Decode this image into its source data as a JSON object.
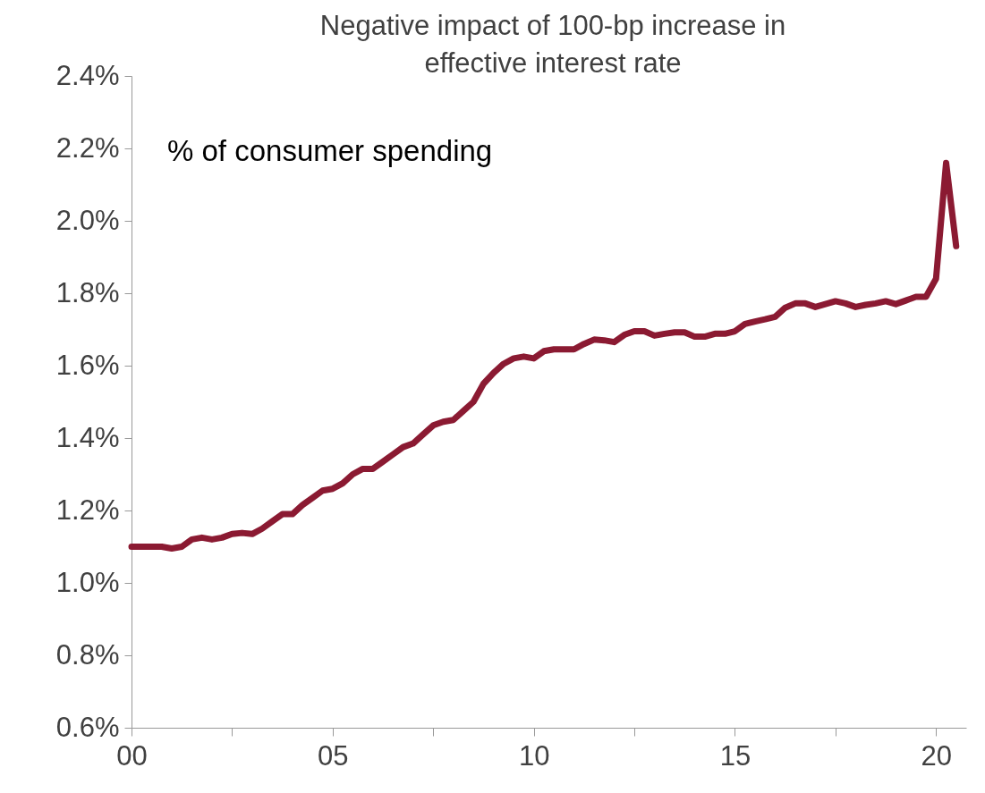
{
  "chart_data": {
    "type": "line",
    "title": "Negative impact of 100-bp increase in\neffective interest rate",
    "annotations": [
      "% of consumer spending"
    ],
    "x": [
      2000,
      2000.25,
      2000.5,
      2000.75,
      2001,
      2001.25,
      2001.5,
      2001.75,
      2002,
      2002.25,
      2002.5,
      2002.75,
      2003,
      2003.25,
      2003.5,
      2003.75,
      2004,
      2004.25,
      2004.5,
      2004.75,
      2005,
      2005.25,
      2005.5,
      2005.75,
      2006,
      2006.25,
      2006.5,
      2006.75,
      2007,
      2007.25,
      2007.5,
      2007.75,
      2008,
      2008.25,
      2008.5,
      2008.75,
      2009,
      2009.25,
      2009.5,
      2009.75,
      2010,
      2010.25,
      2010.5,
      2010.75,
      2011,
      2011.25,
      2011.5,
      2011.75,
      2012,
      2012.25,
      2012.5,
      2012.75,
      2013,
      2013.25,
      2013.5,
      2013.75,
      2014,
      2014.25,
      2014.5,
      2014.75,
      2015,
      2015.25,
      2015.5,
      2015.75,
      2016,
      2016.25,
      2016.5,
      2016.75,
      2017,
      2017.25,
      2017.5,
      2017.75,
      2018,
      2018.25,
      2018.5,
      2018.75,
      2019,
      2019.25,
      2019.5,
      2019.75,
      2020,
      2020.25,
      2020.5
    ],
    "series": [
      {
        "color": "#8b1a32",
        "values": [
          1.1,
          1.1,
          1.1,
          1.1,
          1.095,
          1.1,
          1.12,
          1.125,
          1.12,
          1.125,
          1.135,
          1.138,
          1.135,
          1.15,
          1.17,
          1.19,
          1.19,
          1.215,
          1.235,
          1.255,
          1.26,
          1.275,
          1.3,
          1.315,
          1.315,
          1.335,
          1.355,
          1.375,
          1.385,
          1.41,
          1.435,
          1.445,
          1.45,
          1.475,
          1.5,
          1.55,
          1.58,
          1.605,
          1.62,
          1.625,
          1.62,
          1.64,
          1.645,
          1.645,
          1.645,
          1.66,
          1.672,
          1.67,
          1.665,
          1.685,
          1.695,
          1.695,
          1.683,
          1.688,
          1.692,
          1.692,
          1.68,
          1.68,
          1.688,
          1.688,
          1.695,
          1.715,
          1.722,
          1.728,
          1.735,
          1.76,
          1.772,
          1.772,
          1.762,
          1.77,
          1.778,
          1.772,
          1.762,
          1.768,
          1.772,
          1.778,
          1.77,
          1.78,
          1.79,
          1.79,
          1.84,
          2.16,
          1.93
        ]
      }
    ],
    "xlim": [
      2000,
      2020.75
    ],
    "xticks": [
      {
        "value": 2000,
        "label": "00"
      },
      {
        "value": 2002.5,
        "label": null
      },
      {
        "value": 2005,
        "label": "05"
      },
      {
        "value": 2007.5,
        "label": null
      },
      {
        "value": 2010,
        "label": "10"
      },
      {
        "value": 2012.5,
        "label": null
      },
      {
        "value": 2015,
        "label": "15"
      },
      {
        "value": 2017.5,
        "label": null
      },
      {
        "value": 2020,
        "label": "20"
      }
    ],
    "ylim": [
      0.6,
      2.4
    ],
    "yticks": [
      {
        "value": 0.6,
        "label": "0.6%"
      },
      {
        "value": 0.8,
        "label": "0.8%"
      },
      {
        "value": 1.0,
        "label": "1.0%"
      },
      {
        "value": 1.2,
        "label": "1.2%"
      },
      {
        "value": 1.4,
        "label": "1.4%"
      },
      {
        "value": 1.6,
        "label": "1.6%"
      },
      {
        "value": 1.8,
        "label": "1.8%"
      },
      {
        "value": 2.0,
        "label": "2.0%"
      },
      {
        "value": 2.2,
        "label": "2.2%"
      },
      {
        "value": 2.4,
        "label": "2.4%"
      }
    ],
    "grid": false,
    "marker": "none",
    "line_style": "solid"
  }
}
